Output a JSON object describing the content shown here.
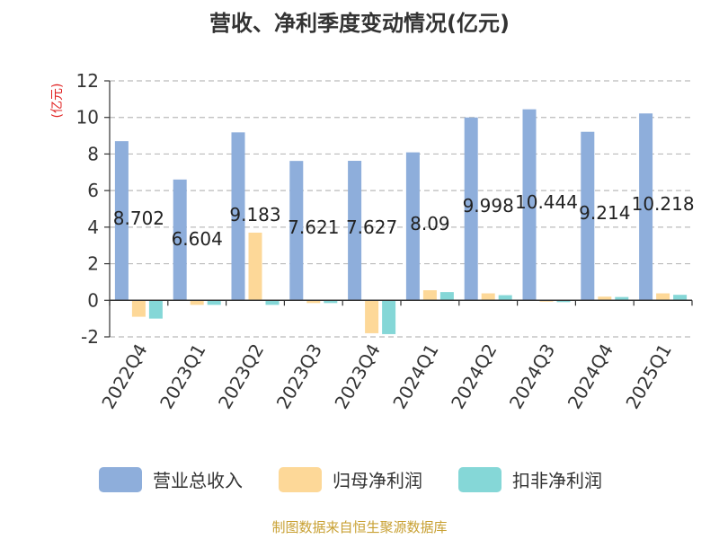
{
  "chart_data": {
    "type": "bar",
    "title": "营收、净利季度变动情况(亿元)",
    "ylabel": "(亿元)",
    "ylim": [
      -2,
      12
    ],
    "yticks": [
      -2,
      0,
      2,
      4,
      6,
      8,
      10,
      12
    ],
    "grid": true,
    "legend_position": "bottom",
    "categories": [
      "2022Q4",
      "2023Q1",
      "2023Q2",
      "2023Q3",
      "2023Q4",
      "2024Q1",
      "2024Q2",
      "2024Q3",
      "2024Q4",
      "2025Q1"
    ],
    "series": [
      {
        "name": "营业总收入",
        "color": "#8eaedb",
        "values": [
          8.702,
          6.604,
          9.183,
          7.621,
          7.627,
          8.09,
          9.998,
          10.444,
          9.214,
          10.218
        ],
        "labels": [
          "8.702",
          "6.604",
          "9.183",
          "7.621",
          "7.627",
          "8.09",
          "9.998",
          "10.444",
          "9.214",
          "10.218"
        ]
      },
      {
        "name": "归母净利润",
        "color": "#fdd898",
        "values": [
          -0.9,
          -0.25,
          3.7,
          -0.15,
          -1.8,
          0.55,
          0.38,
          -0.05,
          0.2,
          0.38
        ]
      },
      {
        "name": "扣非净利润",
        "color": "#85d7d7",
        "values": [
          -1.0,
          -0.25,
          -0.25,
          -0.15,
          -1.85,
          0.45,
          0.28,
          -0.1,
          0.18,
          0.3
        ]
      }
    ],
    "source": "制图数据来自恒生聚源数据库"
  }
}
